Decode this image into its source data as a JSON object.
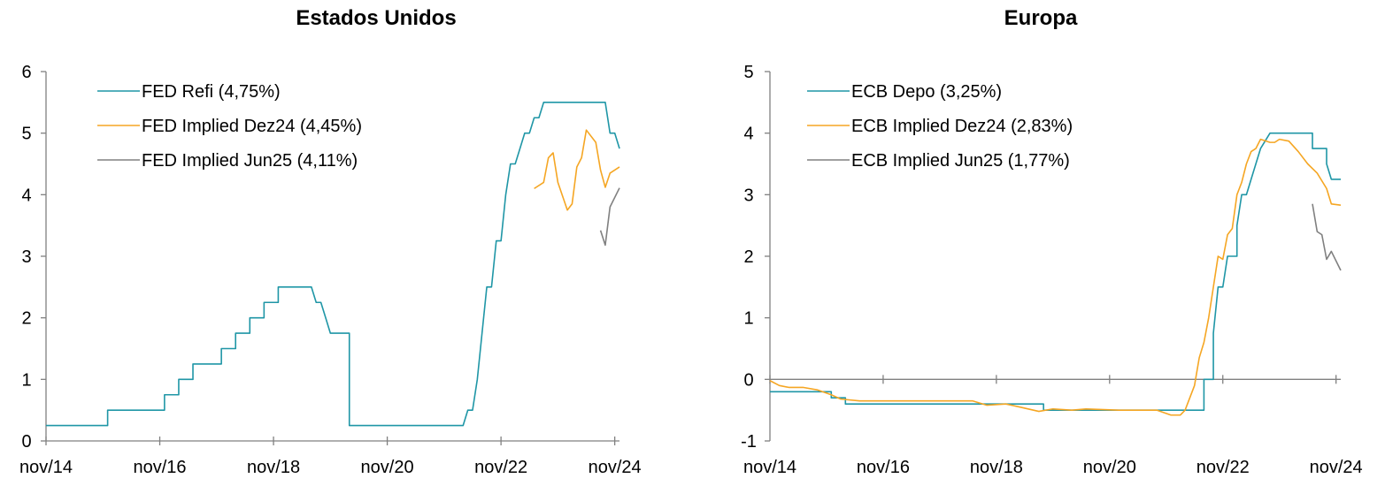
{
  "chart_data": [
    {
      "type": "line",
      "title": "Estados Unidos",
      "xlabel": "",
      "ylabel": "",
      "x_ticks": [
        "nov/14",
        "nov/16",
        "nov/18",
        "nov/20",
        "nov/22",
        "nov/24"
      ],
      "ylim": [
        0,
        6
      ],
      "y_ticks": [
        0,
        1,
        2,
        3,
        4,
        5,
        6
      ],
      "legend_placement": "top-left",
      "grid": false,
      "series": [
        {
          "name": "FED Refi (4,75%)",
          "color": "#1f96a6",
          "points": [
            [
              "2014-11",
              0.25
            ],
            [
              "2015-12",
              0.25
            ],
            [
              "2015-12",
              0.5
            ],
            [
              "2016-12",
              0.5
            ],
            [
              "2016-12",
              0.75
            ],
            [
              "2017-03",
              0.75
            ],
            [
              "2017-03",
              1.0
            ],
            [
              "2017-06",
              1.0
            ],
            [
              "2017-06",
              1.25
            ],
            [
              "2017-12",
              1.25
            ],
            [
              "2017-12",
              1.5
            ],
            [
              "2018-03",
              1.5
            ],
            [
              "2018-03",
              1.75
            ],
            [
              "2018-06",
              1.75
            ],
            [
              "2018-06",
              2.0
            ],
            [
              "2018-09",
              2.0
            ],
            [
              "2018-09",
              2.25
            ],
            [
              "2018-12",
              2.25
            ],
            [
              "2018-12",
              2.5
            ],
            [
              "2019-07",
              2.5
            ],
            [
              "2019-08",
              2.25
            ],
            [
              "2019-09",
              2.25
            ],
            [
              "2019-10",
              2.0
            ],
            [
              "2019-11",
              1.75
            ],
            [
              "2020-03",
              1.75
            ],
            [
              "2020-03",
              0.25
            ],
            [
              "2022-03",
              0.25
            ],
            [
              "2022-04",
              0.5
            ],
            [
              "2022-05",
              0.5
            ],
            [
              "2022-06",
              1.0
            ],
            [
              "2022-07",
              1.75
            ],
            [
              "2022-08",
              2.5
            ],
            [
              "2022-09",
              2.5
            ],
            [
              "2022-10",
              3.25
            ],
            [
              "2022-11",
              3.25
            ],
            [
              "2022-12",
              4.0
            ],
            [
              "2023-01",
              4.5
            ],
            [
              "2023-02",
              4.5
            ],
            [
              "2023-03",
              4.75
            ],
            [
              "2023-04",
              5.0
            ],
            [
              "2023-05",
              5.0
            ],
            [
              "2023-06",
              5.25
            ],
            [
              "2023-07",
              5.25
            ],
            [
              "2023-08",
              5.5
            ],
            [
              "2024-09",
              5.5
            ],
            [
              "2024-10",
              5.0
            ],
            [
              "2024-11",
              5.0
            ],
            [
              "2024-12",
              4.75
            ]
          ]
        },
        {
          "name": "FED Implied Dez24 (4,45%)",
          "color": "#f5a623",
          "points": [
            [
              "2023-06",
              4.1
            ],
            [
              "2023-08",
              4.2
            ],
            [
              "2023-09",
              4.6
            ],
            [
              "2023-10",
              4.68
            ],
            [
              "2023-11",
              4.2
            ],
            [
              "2024-01",
              3.75
            ],
            [
              "2024-02",
              3.85
            ],
            [
              "2024-03",
              4.45
            ],
            [
              "2024-04",
              4.6
            ],
            [
              "2024-05",
              5.05
            ],
            [
              "2024-07",
              4.85
            ],
            [
              "2024-08",
              4.4
            ],
            [
              "2024-09",
              4.12
            ],
            [
              "2024-10",
              4.35
            ],
            [
              "2024-12",
              4.45
            ]
          ]
        },
        {
          "name": "FED Implied Jun25 (4,11%)",
          "color": "#808080",
          "points": [
            [
              "2024-08",
              3.42
            ],
            [
              "2024-09",
              3.18
            ],
            [
              "2024-10",
              3.8
            ],
            [
              "2024-12",
              4.11
            ]
          ]
        }
      ]
    },
    {
      "type": "line",
      "title": "Europa",
      "xlabel": "",
      "ylabel": "",
      "x_ticks": [
        "nov/14",
        "nov/16",
        "nov/18",
        "nov/20",
        "nov/22",
        "nov/24"
      ],
      "ylim": [
        -1,
        5
      ],
      "y_ticks": [
        -1,
        0,
        1,
        2,
        3,
        4,
        5
      ],
      "legend_placement": "top-left",
      "grid": false,
      "series": [
        {
          "name": "ECB Depo (3,25%)",
          "color": "#1f96a6",
          "points": [
            [
              "2014-11",
              -0.2
            ],
            [
              "2015-12",
              -0.2
            ],
            [
              "2015-12",
              -0.3
            ],
            [
              "2016-03",
              -0.3
            ],
            [
              "2016-03",
              -0.4
            ],
            [
              "2019-09",
              -0.4
            ],
            [
              "2019-09",
              -0.5
            ],
            [
              "2022-07",
              -0.5
            ],
            [
              "2022-07",
              0.0
            ],
            [
              "2022-09",
              0.0
            ],
            [
              "2022-09",
              0.75
            ],
            [
              "2022-10",
              1.5
            ],
            [
              "2022-11",
              1.5
            ],
            [
              "2022-12",
              2.0
            ],
            [
              "2023-02",
              2.0
            ],
            [
              "2023-02",
              2.5
            ],
            [
              "2023-03",
              3.0
            ],
            [
              "2023-04",
              3.0
            ],
            [
              "2023-05",
              3.25
            ],
            [
              "2023-06",
              3.5
            ],
            [
              "2023-07",
              3.75
            ],
            [
              "2023-09",
              4.0
            ],
            [
              "2024-06",
              4.0
            ],
            [
              "2024-06",
              3.75
            ],
            [
              "2024-09",
              3.75
            ],
            [
              "2024-09",
              3.5
            ],
            [
              "2024-10",
              3.25
            ],
            [
              "2024-12",
              3.25
            ]
          ]
        },
        {
          "name": "ECB Implied Dez24 (2,83%)",
          "color": "#f5a623",
          "points": [
            [
              "2014-11",
              -0.02
            ],
            [
              "2015-01",
              -0.1
            ],
            [
              "2015-03",
              -0.13
            ],
            [
              "2015-06",
              -0.13
            ],
            [
              "2015-09",
              -0.17
            ],
            [
              "2015-12",
              -0.25
            ],
            [
              "2016-02",
              -0.32
            ],
            [
              "2016-06",
              -0.35
            ],
            [
              "2018-06",
              -0.35
            ],
            [
              "2018-09",
              -0.42
            ],
            [
              "2019-01",
              -0.4
            ],
            [
              "2019-04",
              -0.45
            ],
            [
              "2019-08",
              -0.52
            ],
            [
              "2019-11",
              -0.48
            ],
            [
              "2020-03",
              -0.5
            ],
            [
              "2020-06",
              -0.48
            ],
            [
              "2021-01",
              -0.5
            ],
            [
              "2021-09",
              -0.5
            ],
            [
              "2021-12",
              -0.58
            ],
            [
              "2022-02",
              -0.58
            ],
            [
              "2022-03",
              -0.5
            ],
            [
              "2022-05",
              -0.1
            ],
            [
              "2022-06",
              0.35
            ],
            [
              "2022-07",
              0.6
            ],
            [
              "2022-08",
              1.0
            ],
            [
              "2022-09",
              1.5
            ],
            [
              "2022-10",
              2.0
            ],
            [
              "2022-11",
              1.95
            ],
            [
              "2022-12",
              2.35
            ],
            [
              "2023-01",
              2.45
            ],
            [
              "2023-02",
              3.0
            ],
            [
              "2023-03",
              3.2
            ],
            [
              "2023-04",
              3.5
            ],
            [
              "2023-05",
              3.7
            ],
            [
              "2023-06",
              3.75
            ],
            [
              "2023-07",
              3.9
            ],
            [
              "2023-09",
              3.85
            ],
            [
              "2023-10",
              3.85
            ],
            [
              "2023-11",
              3.9
            ],
            [
              "2024-01",
              3.87
            ],
            [
              "2024-03",
              3.7
            ],
            [
              "2024-05",
              3.5
            ],
            [
              "2024-07",
              3.35
            ],
            [
              "2024-09",
              3.1
            ],
            [
              "2024-10",
              2.85
            ],
            [
              "2024-12",
              2.83
            ]
          ]
        },
        {
          "name": "ECB Implied Jun25 (1,77%)",
          "color": "#808080",
          "points": [
            [
              "2024-06",
              2.85
            ],
            [
              "2024-07",
              2.4
            ],
            [
              "2024-08",
              2.35
            ],
            [
              "2024-09",
              1.95
            ],
            [
              "2024-10",
              2.08
            ],
            [
              "2024-12",
              1.77
            ]
          ]
        }
      ]
    }
  ]
}
